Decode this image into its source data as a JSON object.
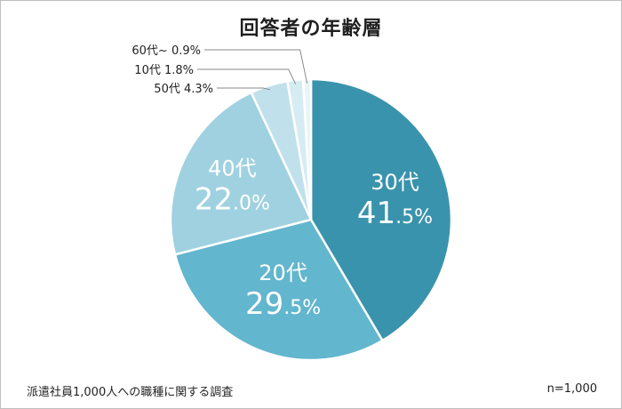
{
  "chart_data": {
    "type": "pie",
    "title": "回答者の年齢層",
    "slices": [
      {
        "label": "30代",
        "value": 41.5,
        "value_text": "41",
        "decimal_text": ".5%",
        "color": "#3a93ad",
        "inside": true
      },
      {
        "label": "20代",
        "value": 29.5,
        "value_text": "29",
        "decimal_text": ".5%",
        "color": "#62b6cd",
        "inside": true
      },
      {
        "label": "40代",
        "value": 22.0,
        "value_text": "22",
        "decimal_text": ".0%",
        "color": "#9fd1e1",
        "inside": true
      },
      {
        "label": "50代",
        "value": 4.3,
        "callout": "50代 4.3%",
        "color": "#c0e1ec",
        "inside": false
      },
      {
        "label": "10代",
        "value": 1.8,
        "callout": "10代 1.8%",
        "color": "#d6ecf3",
        "inside": false
      },
      {
        "label": "60代~",
        "value": 0.9,
        "callout": "60代~ 0.9%",
        "color": "#e8f4f8",
        "inside": false
      }
    ]
  },
  "footer": {
    "source": "派遣社員1,000人への職種に関する調査",
    "sample": "n=1,000"
  }
}
